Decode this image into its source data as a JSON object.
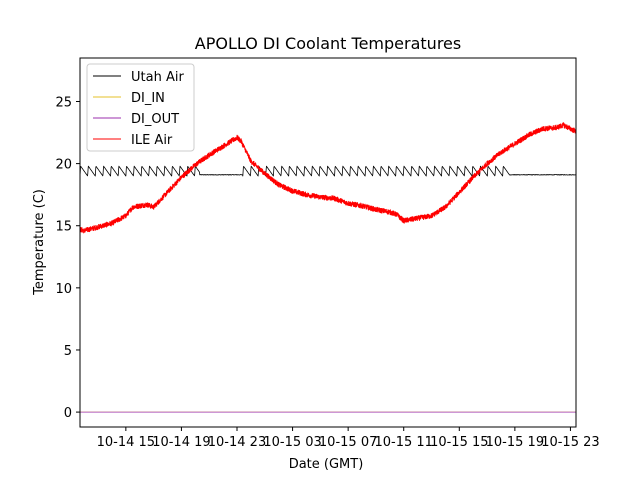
{
  "chart_data": {
    "type": "line",
    "title": "APOLLO DI Coolant Temperatures",
    "xlabel": "Date (GMT)",
    "ylabel": "Temperature (C)",
    "xlim": [
      11.7,
      47.4
    ],
    "ylim": [
      -1.2,
      28.5
    ],
    "x_unit": "hours since 2019-10-14 00:00 GMT",
    "xticks": [
      {
        "value": 15,
        "label": "10-14 15"
      },
      {
        "value": 19,
        "label": "10-14 19"
      },
      {
        "value": 23,
        "label": "10-14 23"
      },
      {
        "value": 27,
        "label": "10-15 03"
      },
      {
        "value": 31,
        "label": "10-15 07"
      },
      {
        "value": 35,
        "label": "10-15 11"
      },
      {
        "value": 39,
        "label": "10-15 15"
      },
      {
        "value": 43,
        "label": "10-15 19"
      },
      {
        "value": 47,
        "label": "10-15 23"
      }
    ],
    "yticks": [
      0,
      5,
      10,
      15,
      20,
      25
    ],
    "legend_position": "top-left",
    "series": [
      {
        "name": "Utah Air",
        "color": "#000000",
        "pattern": "sawtooth",
        "sawtooth_low": 19.0,
        "sawtooth_high": 19.8,
        "sawtooth_period_hours": 0.55,
        "flat_value": 19.1,
        "flat_segments": [
          [
            20.3,
            23.4
          ],
          [
            42.6,
            47.4
          ]
        ],
        "x": [
          11.7,
          47.4
        ],
        "y": [
          19.4,
          19.2
        ]
      },
      {
        "name": "DI_IN",
        "color": "#e6c229",
        "x": [
          11.7,
          47.4
        ],
        "y": [
          0,
          0
        ]
      },
      {
        "name": "DI_OUT",
        "color": "#9b2fae",
        "x": [
          11.7,
          47.4
        ],
        "y": [
          0,
          0
        ]
      },
      {
        "name": "ILE Air",
        "color": "#ff0000",
        "noise": 0.2,
        "x": [
          11.7,
          12.0,
          13.0,
          14.0,
          15.0,
          15.5,
          16.5,
          17.0,
          18.0,
          19.0,
          20.0,
          21.0,
          22.0,
          23.0,
          23.3,
          24.0,
          25.0,
          26.0,
          27.0,
          28.0,
          29.0,
          30.0,
          31.0,
          32.0,
          33.0,
          34.0,
          34.5,
          35.0,
          36.0,
          37.0,
          38.0,
          39.0,
          40.0,
          41.0,
          42.0,
          43.0,
          44.0,
          45.0,
          46.0,
          46.5,
          47.0,
          47.4
        ],
        "y": [
          14.7,
          14.6,
          14.9,
          15.2,
          15.8,
          16.5,
          16.7,
          16.5,
          17.7,
          18.9,
          19.9,
          20.7,
          21.4,
          22.1,
          21.8,
          20.2,
          19.2,
          18.3,
          17.8,
          17.5,
          17.3,
          17.2,
          16.8,
          16.6,
          16.3,
          16.1,
          15.9,
          15.4,
          15.6,
          15.8,
          16.5,
          17.7,
          18.9,
          20.0,
          20.9,
          21.6,
          22.3,
          22.8,
          22.9,
          23.1,
          22.8,
          22.6
        ]
      }
    ]
  }
}
